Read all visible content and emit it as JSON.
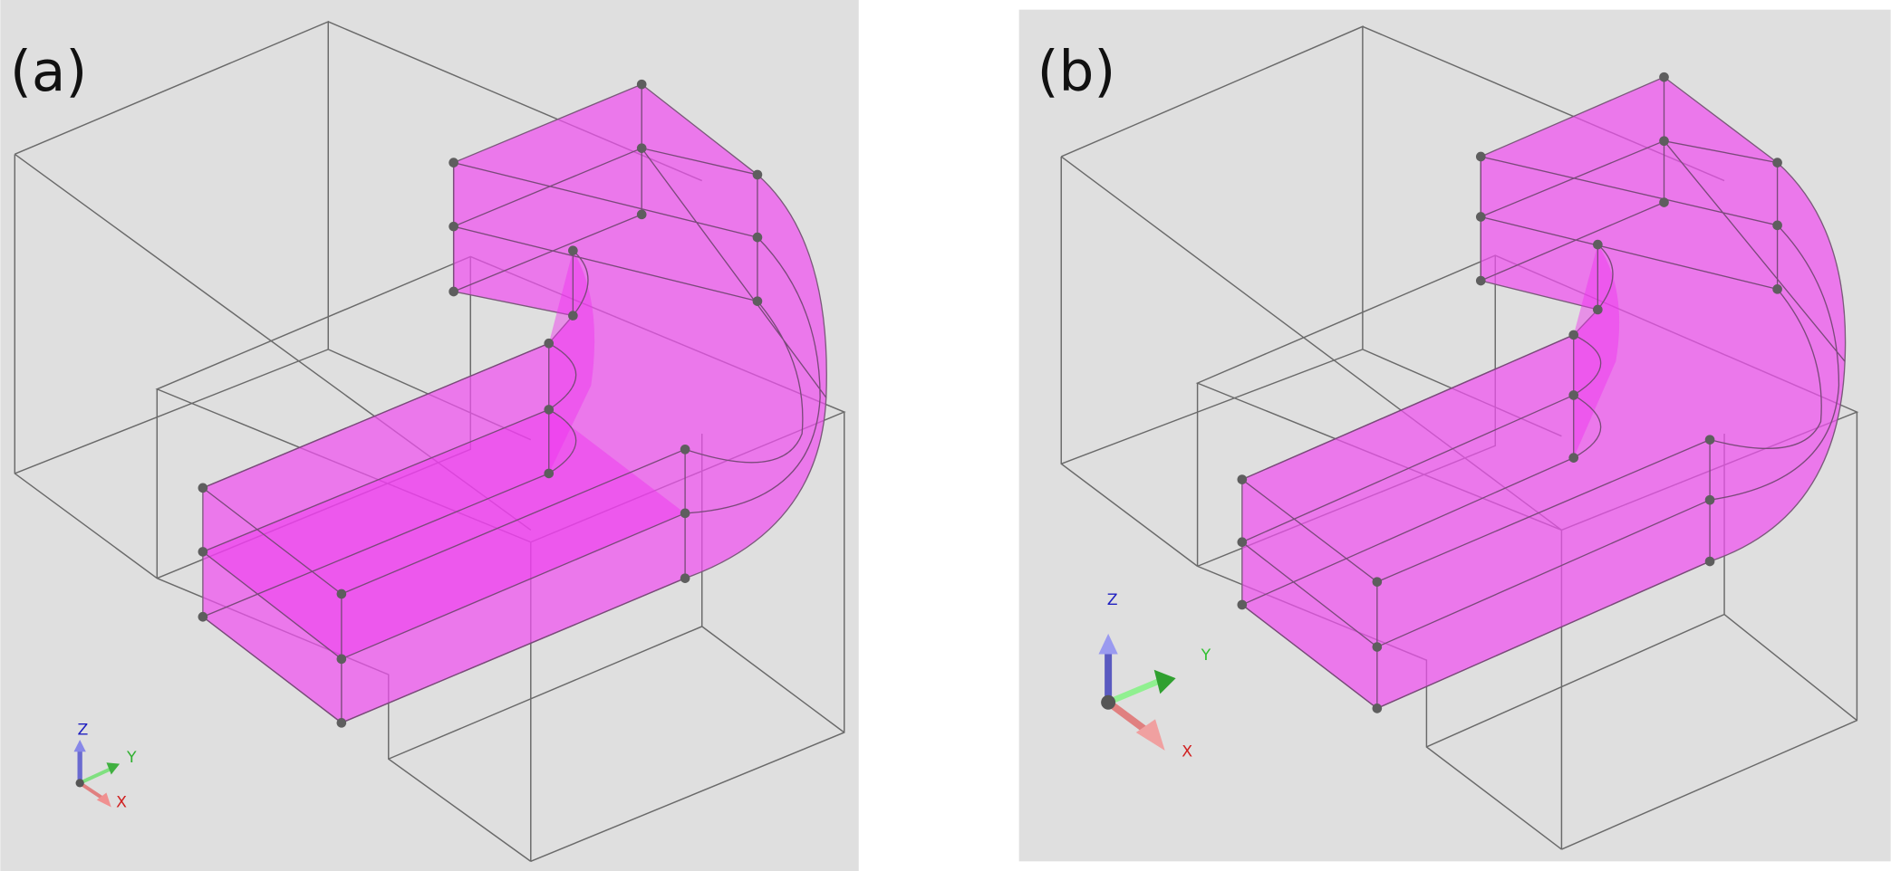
{
  "panels": [
    {
      "label": "(a)",
      "axes": {
        "z": "Z",
        "y": "Y",
        "x": "X"
      }
    },
    {
      "label": "(b)",
      "axes": {
        "z": "Z",
        "y": "Y",
        "x": "X"
      }
    }
  ],
  "colors": {
    "background": "#dfdfdf",
    "solid": "#f050f0",
    "wireframe": "#6a6a6a",
    "vertex": "#5e5e5e",
    "axis_x": "#e07070",
    "axis_y": "#60d060",
    "axis_z": "#6060d0"
  }
}
